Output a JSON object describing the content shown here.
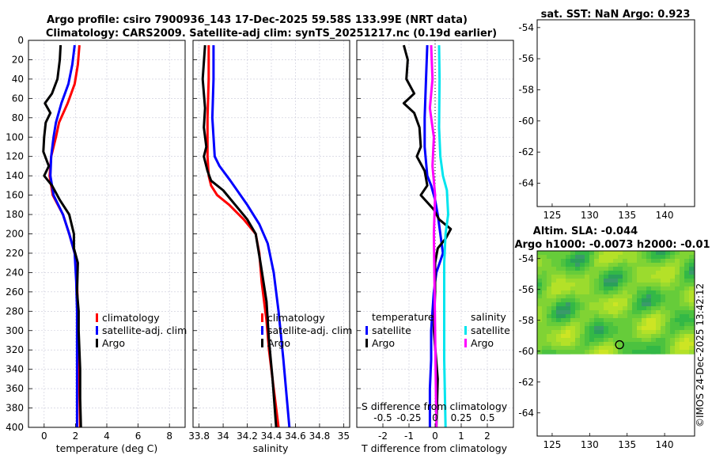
{
  "titles": {
    "line1": "Argo profile: csiro 7900936_143 17-Dec-2025 59.58S 133.99E (NRT data)",
    "line2": "Climatology: CARS2009. Satellite-adj clim: synTS_20251217.nc (0.19d earlier)",
    "sst": "sat. SST: NaN Argo: 0.923",
    "altim1": "Altim. SLA: -0.044",
    "altim2": "Argo h1000: -0.0073 h2000: -0.01"
  },
  "watermark": "©IMOS 24-Dec-2025 13:42:12",
  "colors": {
    "climatology": "#ff0000",
    "satellite": "#0000ff",
    "argo": "#000000",
    "sal_satellite": "#00e5ee",
    "sal_argo": "#ff00ff"
  },
  "depth_axis": {
    "ylim": [
      0,
      400
    ],
    "ticks": [
      0,
      20,
      40,
      60,
      80,
      100,
      120,
      140,
      160,
      180,
      200,
      220,
      240,
      260,
      280,
      300,
      320,
      340,
      360,
      380,
      400
    ]
  },
  "legends": {
    "temp": [
      "climatology",
      "satellite-adj. clim",
      "Argo"
    ],
    "sal": [
      "climatology",
      "satellite-adj. clim",
      "Argo"
    ],
    "diff_t_header": "temperature",
    "diff_s_header": "salinity",
    "diff_t": [
      "satellite",
      "Argo"
    ],
    "diff_s": [
      "satellite",
      "Argo"
    ]
  },
  "chart_data": [
    {
      "type": "line",
      "name": "temperature-profile",
      "xlabel": "temperature (deg C)",
      "xlim": [
        -1,
        9
      ],
      "xticks": [
        0,
        2,
        4,
        6,
        8
      ],
      "ylabel": "depth",
      "ylim": [
        400,
        0
      ],
      "series": [
        {
          "name": "climatology",
          "x": [
            2.25,
            2.15,
            1.95,
            1.5,
            0.95,
            0.75,
            0.45,
            0.35,
            0.55,
            1.2,
            1.6,
            1.95,
            2.1,
            2.15,
            2.2,
            2.25,
            2.3
          ],
          "depth": [
            5,
            25,
            45,
            65,
            85,
            100,
            120,
            140,
            160,
            180,
            200,
            220,
            250,
            280,
            320,
            360,
            400
          ]
        },
        {
          "name": "satellite-adj. clim",
          "x": [
            1.95,
            1.8,
            1.55,
            1.1,
            0.75,
            0.6,
            0.45,
            0.4,
            0.6,
            1.2,
            1.6,
            1.95,
            2.05,
            2.1,
            2.1,
            2.1,
            2.1
          ],
          "depth": [
            5,
            25,
            45,
            65,
            85,
            100,
            120,
            140,
            160,
            180,
            200,
            220,
            250,
            280,
            320,
            360,
            400
          ]
        },
        {
          "name": "Argo",
          "x": [
            1.05,
            1.0,
            0.85,
            0.5,
            0.05,
            0.4,
            0.1,
            0.0,
            -0.05,
            0.3,
            0.0,
            0.5,
            1.0,
            1.6,
            1.9,
            1.9,
            2.15,
            2.1,
            2.2,
            2.2,
            2.3,
            2.3,
            2.35
          ],
          "depth": [
            5,
            20,
            40,
            55,
            65,
            75,
            85,
            100,
            115,
            130,
            140,
            150,
            165,
            180,
            200,
            215,
            230,
            260,
            280,
            300,
            340,
            370,
            400
          ]
        }
      ]
    },
    {
      "type": "line",
      "name": "salinity-profile",
      "xlabel": "salinity",
      "xlim": [
        33.75,
        35.05
      ],
      "xticks": [
        33.8,
        34,
        34.2,
        34.4,
        34.6,
        34.8,
        35
      ],
      "xtick_labels": [
        "33.8",
        "34",
        "34.2",
        "34.4",
        "34.6",
        "34.8",
        "35"
      ],
      "ylim": [
        400,
        0
      ],
      "series": [
        {
          "name": "climatology",
          "x": [
            33.88,
            33.88,
            33.87,
            33.87,
            33.87,
            33.88,
            33.9,
            33.95,
            34.05,
            34.17,
            34.27,
            34.3,
            34.32,
            34.36,
            34.38,
            34.42,
            34.46
          ],
          "depth": [
            5,
            40,
            80,
            100,
            120,
            140,
            150,
            160,
            170,
            185,
            200,
            220,
            250,
            290,
            320,
            360,
            400
          ]
        },
        {
          "name": "satellite-adj. clim",
          "x": [
            33.92,
            33.92,
            33.91,
            33.92,
            33.93,
            33.97,
            34.06,
            34.2,
            34.3,
            34.37,
            34.42,
            34.46,
            34.5,
            34.55
          ],
          "depth": [
            5,
            40,
            80,
            100,
            120,
            130,
            145,
            170,
            190,
            210,
            240,
            280,
            330,
            400
          ]
        },
        {
          "name": "Argo",
          "x": [
            33.85,
            33.83,
            33.85,
            33.84,
            33.86,
            33.84,
            33.87,
            33.9,
            34.0,
            34.1,
            34.2,
            34.27,
            34.31,
            34.36,
            34.38,
            34.41,
            34.44
          ],
          "depth": [
            5,
            40,
            70,
            90,
            110,
            120,
            135,
            145,
            155,
            170,
            185,
            200,
            230,
            270,
            310,
            350,
            400
          ]
        }
      ]
    },
    {
      "type": "line",
      "name": "difference-profile",
      "xlabel": "T difference from climatology",
      "xlim": [
        -3,
        3
      ],
      "xticks": [
        -2,
        -1,
        0,
        1,
        2
      ],
      "xtick_labels": [
        "-2",
        "-1",
        "0",
        "1",
        "2"
      ],
      "top_xlabel": "S difference from climatology",
      "top_xtick_labels": [
        "-0.5",
        "-0.25",
        "0",
        "0.25",
        "0.5"
      ],
      "ylim": [
        400,
        0
      ],
      "series": [
        {
          "name": "temperature satellite",
          "x": [
            -0.3,
            -0.35,
            -0.4,
            -0.4,
            -0.3,
            -0.15,
            0.0,
            0.1,
            0.2,
            0.3,
            0.05,
            -0.05,
            -0.1,
            -0.15,
            -0.15,
            -0.2,
            -0.2
          ],
          "depth": [
            5,
            40,
            80,
            110,
            140,
            150,
            165,
            180,
            200,
            220,
            240,
            260,
            280,
            300,
            330,
            360,
            400
          ]
        },
        {
          "name": "temperature Argo",
          "x": [
            -1.2,
            -1.05,
            -1.1,
            -0.8,
            -1.2,
            -0.8,
            -0.6,
            -0.55,
            -0.7,
            -0.4,
            -0.3,
            -0.55,
            -0.05,
            0.15,
            0.6,
            0.4,
            0.1,
            0.0,
            0.0,
            -0.05,
            0.1,
            0.05
          ],
          "depth": [
            5,
            20,
            40,
            55,
            65,
            75,
            90,
            110,
            120,
            135,
            150,
            160,
            175,
            185,
            195,
            205,
            215,
            230,
            260,
            300,
            350,
            400
          ]
        },
        {
          "name": "salinity satellite",
          "x": [
            0.15,
            0.17,
            0.15,
            0.2,
            0.3,
            0.45,
            0.5,
            0.4,
            0.35,
            0.35,
            0.35,
            0.4
          ],
          "depth": [
            5,
            40,
            90,
            120,
            140,
            155,
            180,
            200,
            230,
            280,
            330,
            400
          ]
        },
        {
          "name": "salinity Argo",
          "x": [
            -0.15,
            -0.1,
            -0.2,
            -0.05,
            -0.1,
            0.0,
            -0.05,
            0.0,
            0.05
          ],
          "depth": [
            5,
            40,
            70,
            100,
            130,
            160,
            200,
            300,
            400
          ]
        }
      ]
    },
    {
      "type": "scatter",
      "name": "sst-map",
      "xlim": [
        123,
        144
      ],
      "ylim": [
        -65.5,
        -53.5
      ],
      "xticks": [
        125,
        130,
        135,
        140
      ],
      "yticks": [
        -54,
        -56,
        -58,
        -60,
        -62,
        -64
      ],
      "points": [
        {
          "lon": 133.99,
          "lat": -59.58
        }
      ]
    },
    {
      "type": "heatmap",
      "name": "sla-map",
      "xlim": [
        123,
        144
      ],
      "ylim": [
        -65.5,
        -53.5
      ],
      "data_lat_range": [
        -60.2,
        -53.5
      ],
      "xticks": [
        125,
        130,
        135,
        140
      ],
      "yticks": [
        -54,
        -56,
        -58,
        -60,
        -62,
        -64
      ],
      "points": [
        {
          "lon": 133.99,
          "lat": -59.58
        }
      ]
    }
  ]
}
